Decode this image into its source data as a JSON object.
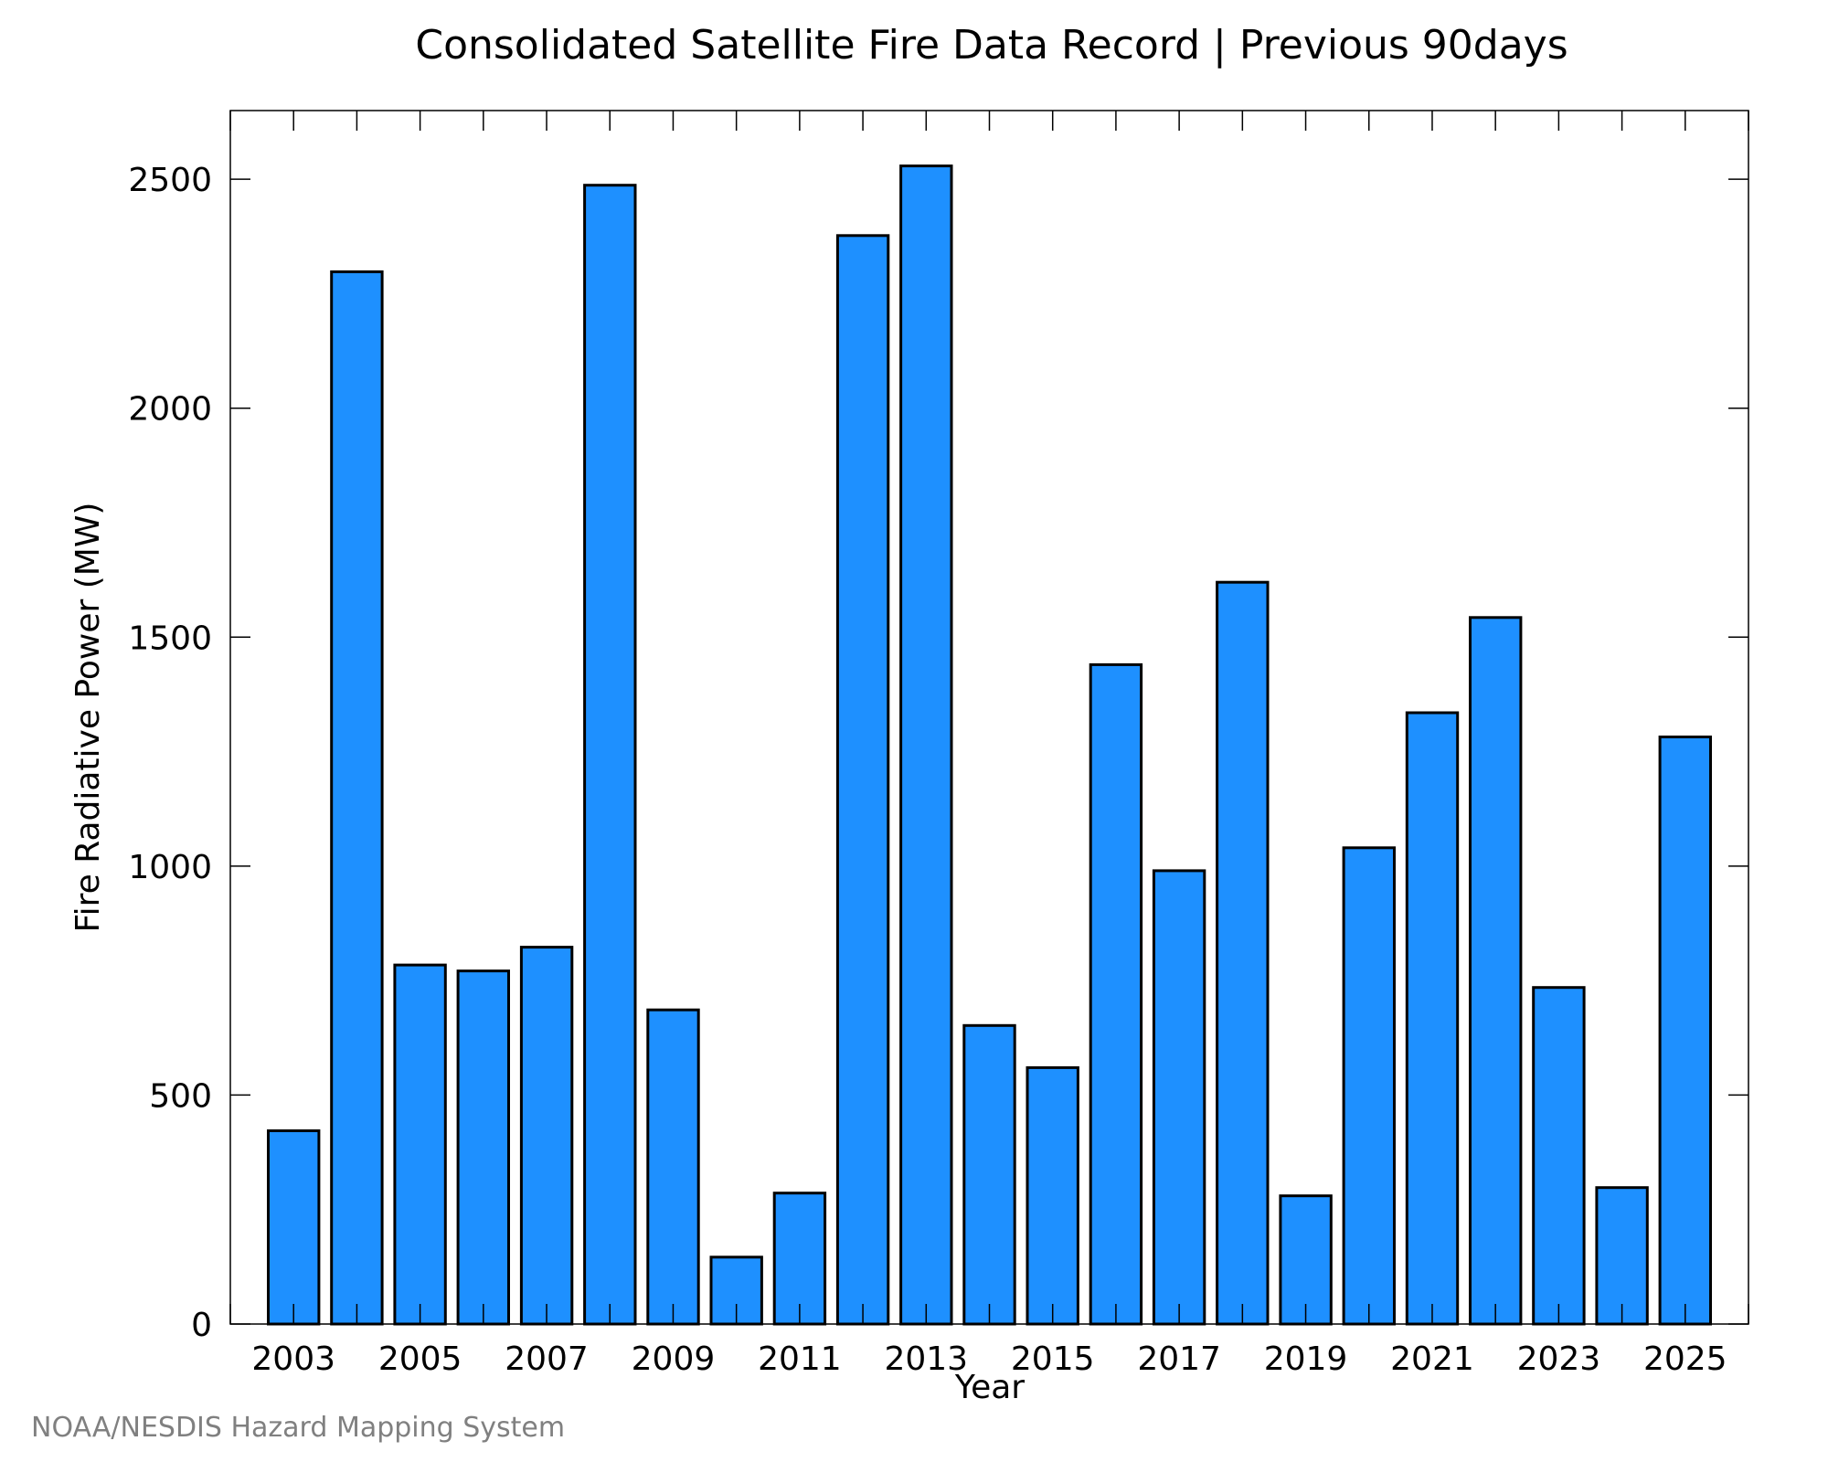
{
  "chart_data": {
    "type": "bar",
    "title": "Consolidated Satellite Fire Data Record | Previous 90days",
    "xlabel": "Year",
    "ylabel": "Fire Radiative Power (MW)",
    "categories": [
      "2003",
      "2004",
      "2005",
      "2006",
      "2007",
      "2008",
      "2009",
      "2010",
      "2011",
      "2012",
      "2013",
      "2014",
      "2015",
      "2016",
      "2017",
      "2018",
      "2019",
      "2020",
      "2021",
      "2022",
      "2023",
      "2024",
      "2025"
    ],
    "values": [
      422,
      2298,
      784,
      771,
      823,
      2487,
      686,
      146,
      286,
      2377,
      2529,
      652,
      560,
      1440,
      990,
      1620,
      280,
      1040,
      1335,
      1543,
      735,
      298,
      1282
    ],
    "xlim": [
      2002,
      2026
    ],
    "ylim": [
      0,
      2650
    ],
    "yticks": [
      "0",
      "500",
      "1000",
      "1500",
      "2000",
      "2500"
    ],
    "xticks": [
      "2003",
      "2005",
      "2007",
      "2009",
      "2011",
      "2013",
      "2015",
      "2017",
      "2019",
      "2021",
      "2023",
      "2025"
    ],
    "bar_color": "#1e90ff",
    "bar_edge_color": "#000000",
    "grid": false,
    "legend": "none"
  },
  "credit": "NOAA/NESDIS Hazard Mapping System"
}
